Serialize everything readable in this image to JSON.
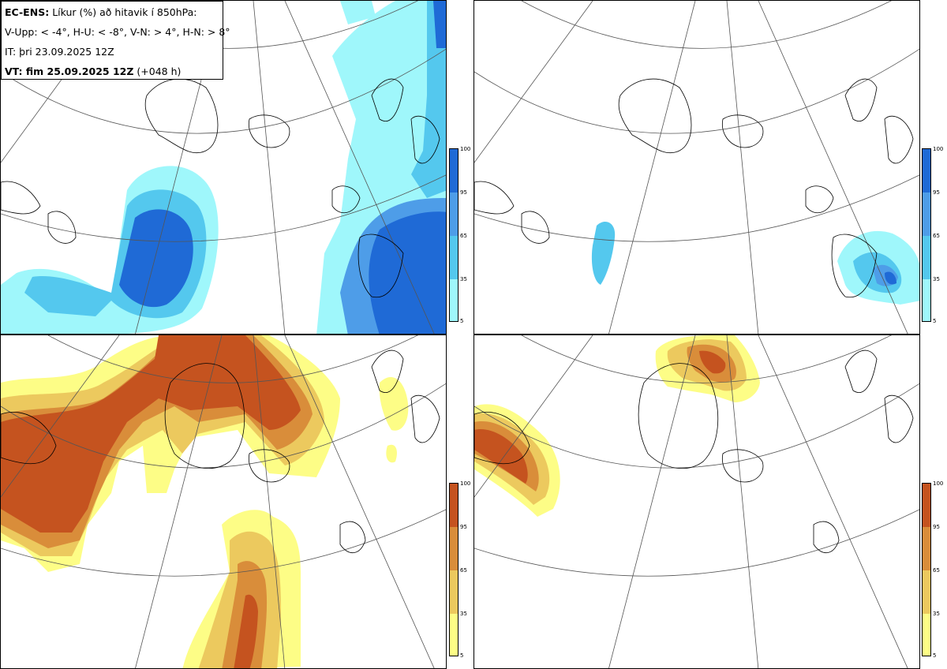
{
  "info": {
    "title_bold": "EC-ENS:",
    "title_text": "Líkur (%) að hitavik í 850hPa:",
    "thresholds": "V-Upp: < -4°, H-U: < -8°, V-N: > 4°, H-N: > 8°",
    "initial_time": "IT: þri 23.09.2025 12Z",
    "valid_bold": "VT: fim 25.09.2025 12Z",
    "valid_lead": "(+048 h)"
  },
  "colorbars": {
    "cold": {
      "ticks": [
        "100",
        "95",
        "65",
        "35",
        "5"
      ],
      "colors": [
        "#1f6ad6",
        "#4e9de8",
        "#54c8ee",
        "#9ff7fb"
      ]
    },
    "warm": {
      "ticks": [
        "100",
        "95",
        "65",
        "35",
        "5"
      ],
      "colors": [
        "#c5531f",
        "#d98d3a",
        "#ecc95e",
        "#fdfd86"
      ]
    }
  },
  "panels": [
    {
      "key": "cold-4",
      "description": "V-Upp"
    },
    {
      "key": "cold-8",
      "description": "H-U"
    },
    {
      "key": "warm-4",
      "description": "V-N"
    },
    {
      "key": "warm-8",
      "description": "H-N"
    }
  ]
}
